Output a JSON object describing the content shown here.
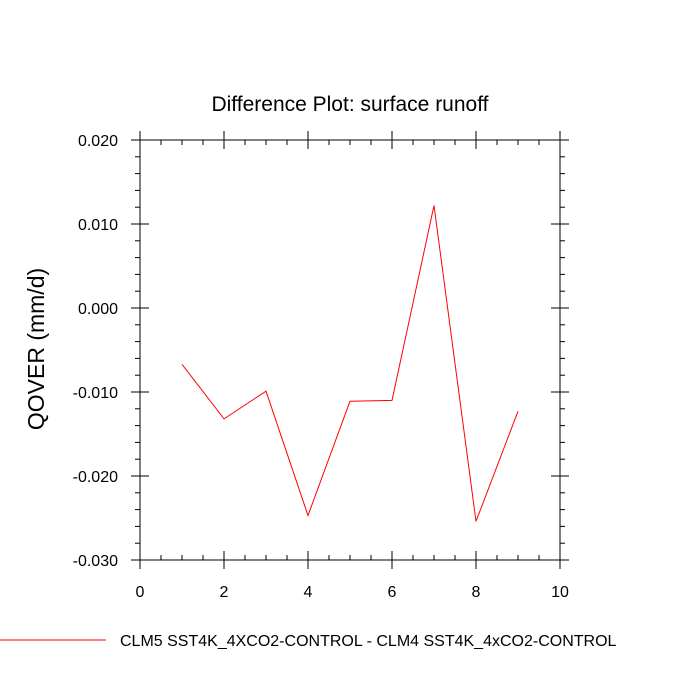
{
  "chart_data": {
    "type": "line",
    "title": "Difference Plot: surface runoff",
    "xlabel": "",
    "ylabel": "QOVER  (mm/d)",
    "xlim": [
      0,
      10
    ],
    "ylim": [
      -0.03,
      0.02
    ],
    "xticks": [
      0,
      2,
      4,
      6,
      8,
      10
    ],
    "xtick_labels": [
      "0",
      "2",
      "4",
      "6",
      "8",
      "10"
    ],
    "yticks": [
      -0.03,
      -0.02,
      -0.01,
      0.0,
      0.01,
      0.02
    ],
    "ytick_labels": [
      "-0.030",
      "-0.020",
      "-0.010",
      "0.000",
      "0.010",
      "0.020"
    ],
    "grid": false,
    "legend_position": "bottom",
    "series": [
      {
        "name": "CLM5 SST4K_4XCO2-CONTROL - CLM4 SST4K_4xCO2-CONTROL",
        "color": "#ff0000",
        "x": [
          1,
          2,
          3,
          4,
          5,
          6,
          7,
          8,
          9
        ],
        "y": [
          -0.0067,
          -0.0132,
          -0.0099,
          -0.0247,
          -0.0111,
          -0.011,
          0.0122,
          -0.0254,
          -0.0123
        ]
      }
    ]
  }
}
